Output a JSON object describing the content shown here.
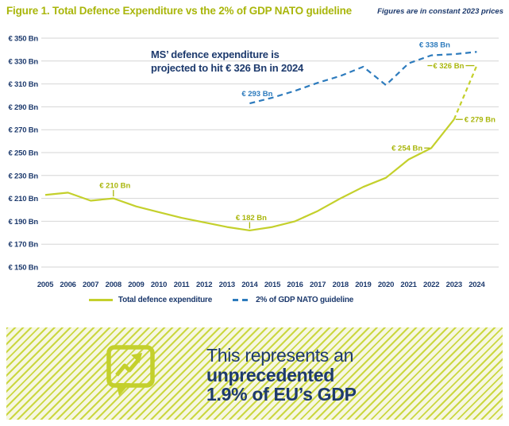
{
  "header": {
    "title": "Figure 1. Total Defence Expenditure vs the 2% of GDP NATO guideline",
    "note": "Figures are in constant 2023 prices"
  },
  "colors": {
    "accent_line": "#c4d02c",
    "accent_text": "#a9b60b",
    "navy": "#1d3a6d",
    "guideline_blue": "#2d7bbd",
    "grid_gray": "#d6d6d6",
    "stripe": "#cbd741",
    "stripe_bg": "#f6f7e2"
  },
  "chart_data": {
    "type": "line",
    "x": [
      2005,
      2006,
      2007,
      2008,
      2009,
      2010,
      2011,
      2012,
      2013,
      2014,
      2015,
      2016,
      2017,
      2018,
      2019,
      2020,
      2021,
      2022,
      2023,
      2024
    ],
    "ylim": [
      150,
      350
    ],
    "grid": "horizontal",
    "legend_position": "bottom-center",
    "y_ticks": [
      {
        "value": 350,
        "label": "€ 350 Bn"
      },
      {
        "value": 330,
        "label": "€ 330 Bn"
      },
      {
        "value": 310,
        "label": "€ 310 Bn"
      },
      {
        "value": 290,
        "label": "€ 290 Bn"
      },
      {
        "value": 270,
        "label": "€ 270 Bn"
      },
      {
        "value": 250,
        "label": "€ 250 Bn"
      },
      {
        "value": 230,
        "label": "€ 230 Bn"
      },
      {
        "value": 210,
        "label": "€ 210 Bn"
      },
      {
        "value": 190,
        "label": "€ 190 Bn"
      },
      {
        "value": 170,
        "label": "€ 170 Bn"
      },
      {
        "value": 150,
        "label": "€ 150 Bn"
      }
    ],
    "series": [
      {
        "name": "Total defence expenditure",
        "key": "total-defence-expenditure",
        "unit": "€ Bn",
        "style": "solid",
        "projected_from_year": 2023,
        "values": [
          213,
          215,
          208,
          210,
          203,
          198,
          193,
          189,
          185,
          182,
          185,
          190,
          199,
          210,
          220,
          228,
          244,
          254,
          279,
          326
        ]
      },
      {
        "name": "2% of GDP NATO guideline",
        "key": "nato-2pct-guideline",
        "unit": "€ Bn",
        "style": "dashed",
        "start_year": 2014,
        "values": [
          293,
          298,
          304,
          311,
          317,
          325,
          309,
          328,
          335,
          336,
          338
        ]
      }
    ],
    "point_labels": [
      {
        "series": 0,
        "year": 2008,
        "text": "€ 210 Bn",
        "placement": "tick-above"
      },
      {
        "series": 0,
        "year": 2014,
        "text": "€ 182 Bn",
        "placement": "tick-above"
      },
      {
        "series": 0,
        "year": 2022,
        "text": "€ 254 Bn",
        "placement": "dash-left"
      },
      {
        "series": 0,
        "year": 2023,
        "text": "€ 279 Bn",
        "placement": "dash-right"
      },
      {
        "series": 0,
        "year": 2024,
        "text": "€ 326 Bn",
        "placement": "dash-left-both"
      },
      {
        "series": 1,
        "year": 2014,
        "text": "€ 293 Bn",
        "placement": "above"
      },
      {
        "series": 1,
        "year": 2024,
        "text": "€ 338 Bn",
        "placement": "above-far"
      }
    ],
    "annotation": {
      "lines": [
        "MS’ defence expenditure is",
        "projected to hit € 326 Bn in 2024"
      ]
    }
  },
  "banner": {
    "icon": "trend-chat-bubble-icon",
    "lines": [
      "This represents an",
      "unprecedented",
      "1.9% of EU’s GDP"
    ],
    "emphasis": [
      false,
      true,
      true
    ]
  }
}
